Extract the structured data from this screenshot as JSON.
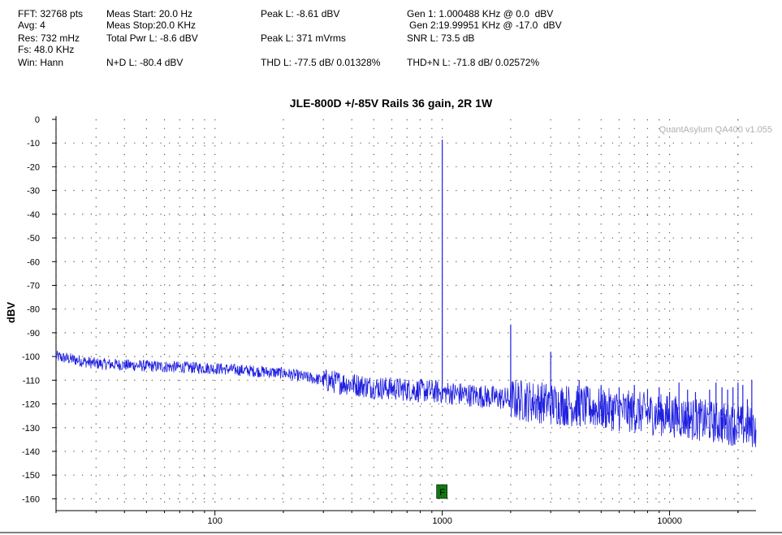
{
  "header": {
    "fft": "FFT: 32768 pts",
    "avg": "Avg: 4",
    "res": "Res: 732 mHz",
    "fs": "Fs: 48.0 KHz",
    "win": "Win: Hann",
    "meas_start": "Meas Start: 20.0 Hz",
    "meas_stop": "Meas Stop:20.0 KHz",
    "total_pwr": "Total Pwr L: -8.6 dBV",
    "nd": "N+D L: -80.4 dBV",
    "peak_dbv": "Peak L: -8.61 dBV",
    "peak_mv": "Peak L: 371 mVrms",
    "thd": "THD L: -77.5 dB/ 0.01328%",
    "gen1": "Gen 1: 1.000488 KHz @ 0.0  dBV",
    "gen2": "Gen 2:19.99951 KHz @ -17.0  dBV",
    "snr": "SNR L: 73.5 dB",
    "thdn": "THD+N L: -71.8 dB/ 0.02572%"
  },
  "chart_data": {
    "type": "line",
    "title": "JLE-800D +/-85V Rails 36 gain, 2R 1W",
    "ylabel": "dBV",
    "xlabel": "",
    "x_scale": "log",
    "xlim": [
      20,
      24000
    ],
    "ylim": [
      -165,
      0
    ],
    "grid": true,
    "x_tick_labels": [
      "100",
      "1000",
      "10000"
    ],
    "x_ticks": [
      100,
      1000,
      10000
    ],
    "y_ticks": [
      0,
      -10,
      -20,
      -30,
      -40,
      -50,
      -60,
      -70,
      -80,
      -90,
      -100,
      -110,
      -120,
      -130,
      -140,
      -150,
      -160
    ],
    "y_tick_labels": [
      "0",
      "-10",
      "-20",
      "-30",
      "-40",
      "-50",
      "-60",
      "-70",
      "-80",
      "-90",
      "-100",
      "-110",
      "-120",
      "-130",
      "-140",
      "-150",
      "-160"
    ],
    "watermark": "QuantAsylum QA400 v1.055",
    "marker": {
      "label": "F",
      "x": 1000,
      "color": "#117711"
    },
    "series": [
      {
        "color": "#2020e0",
        "noise_floor": [
          [
            20,
            -100
          ],
          [
            30,
            -103
          ],
          [
            50,
            -104
          ],
          [
            100,
            -105
          ],
          [
            200,
            -107
          ],
          [
            300,
            -110
          ],
          [
            500,
            -113
          ],
          [
            1000,
            -115
          ],
          [
            2000,
            -118
          ],
          [
            5000,
            -122
          ],
          [
            10000,
            -125
          ],
          [
            20000,
            -129
          ],
          [
            24000,
            -130
          ]
        ],
        "peaks": [
          [
            1000,
            -8.61
          ],
          [
            2000,
            -86.5
          ],
          [
            3000,
            -98
          ],
          [
            4000,
            -110
          ],
          [
            5000,
            -112
          ],
          [
            6000,
            -113
          ],
          [
            7000,
            -112
          ],
          [
            8000,
            -114
          ],
          [
            9000,
            -113
          ],
          [
            10000,
            -115
          ],
          [
            11000,
            -111
          ],
          [
            12000,
            -114
          ],
          [
            13000,
            -115
          ],
          [
            15000,
            -114
          ],
          [
            16000,
            -111
          ],
          [
            17000,
            -113
          ],
          [
            18000,
            -114
          ],
          [
            19000,
            -113
          ],
          [
            20000,
            -111
          ],
          [
            21000,
            -112
          ],
          [
            22000,
            -118
          ],
          [
            23000,
            -110
          ]
        ]
      }
    ]
  }
}
